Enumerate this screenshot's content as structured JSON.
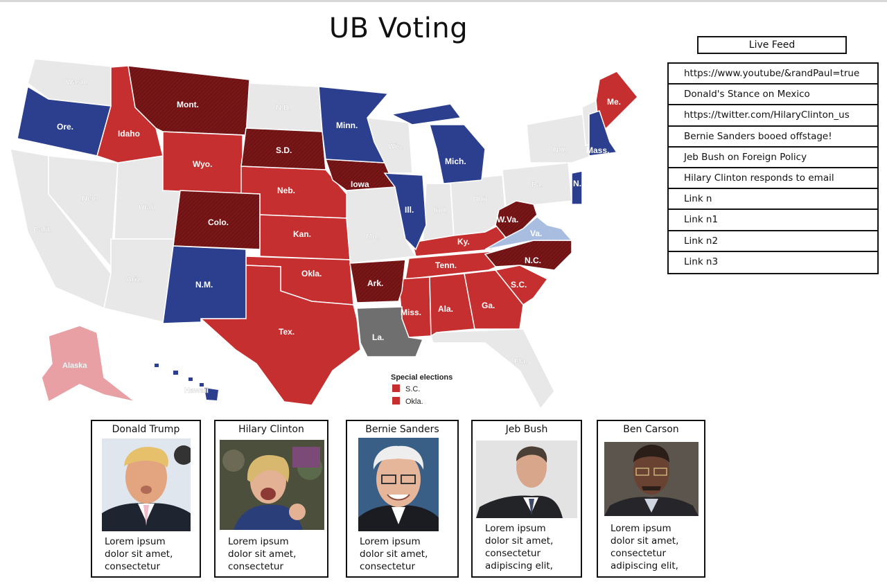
{
  "app": {
    "title": "UB Voting"
  },
  "map": {
    "states": {
      "wash": "Wash.",
      "ore": "Ore.",
      "cal": "Calif.",
      "idaho": "Idaho",
      "nev": "Nev.",
      "mont": "Mont.",
      "wyo": "Wyo.",
      "utah": "Utah",
      "ariz": "Ariz.",
      "colo": "Colo.",
      "nm": "N.M.",
      "nd": "N.D.",
      "sd": "S.D.",
      "neb": "Neb.",
      "kan": "Kan.",
      "okla": "Okla.",
      "tex": "Tex.",
      "minn": "Minn.",
      "iowa": "Iowa",
      "mo": "Mo.",
      "ark": "Ark.",
      "la": "La.",
      "wis": "Wis.",
      "ill": "Ill.",
      "mich": "Mich.",
      "ind": "Ind.",
      "ohio": "Ohio",
      "ky": "Ky.",
      "tenn": "Tenn.",
      "miss": "Miss.",
      "ala": "Ala.",
      "ga": "Ga.",
      "fla": "Fla.",
      "sc": "S.C.",
      "nc": "N.C.",
      "va": "Va.",
      "wva": "W.Va.",
      "pa": "Pa.",
      "ny": "N.Y.",
      "me": "Me.",
      "mass": "Mass.",
      "nj": "N.J.",
      "alaska": "Alaska",
      "hawaii": "Hawaii"
    },
    "legend": {
      "title": "Special elections",
      "items": [
        "S.C.",
        "Okla."
      ]
    },
    "colors": {
      "republican": "#c62f2f",
      "republican_hold": "#7a1618",
      "democrat": "#2b3f8e",
      "democrat_light": "#a9bde0",
      "alaska": "#e8a0a4",
      "runoff": "#6f6f6f",
      "no_race": "#e8e8e8"
    }
  },
  "live_feed": {
    "title": "Live Feed",
    "items": [
      "https://www.youtube/&randPaul=true",
      "Donald's Stance on Mexico",
      "https://twitter.com/HilaryClinton_us",
      "Bernie Sanders booed offstage!",
      "Jeb Bush on Foreign Policy",
      "Hilary Clinton responds to email",
      "Link n",
      "Link n1",
      "Link n2",
      "Link n3"
    ]
  },
  "candidates": [
    {
      "name": "Donald Trump",
      "text": "Lorem ipsum\ndolor sit amet,\nconsectetur"
    },
    {
      "name": "Hilary Clinton",
      "text": "Lorem ipsum\ndolor sit amet,\nconsectetur"
    },
    {
      "name": "Bernie Sanders",
      "text": "Lorem ipsum\ndolor sit amet,\nconsectetur"
    },
    {
      "name": "Jeb Bush",
      "text": "Lorem ipsum\ndolor sit amet,\nconsectetur\nadipiscing elit,"
    },
    {
      "name": "Ben Carson",
      "text": "Lorem ipsum\ndolor sit amet,\nconsectetur\nadipiscing elit,"
    }
  ]
}
